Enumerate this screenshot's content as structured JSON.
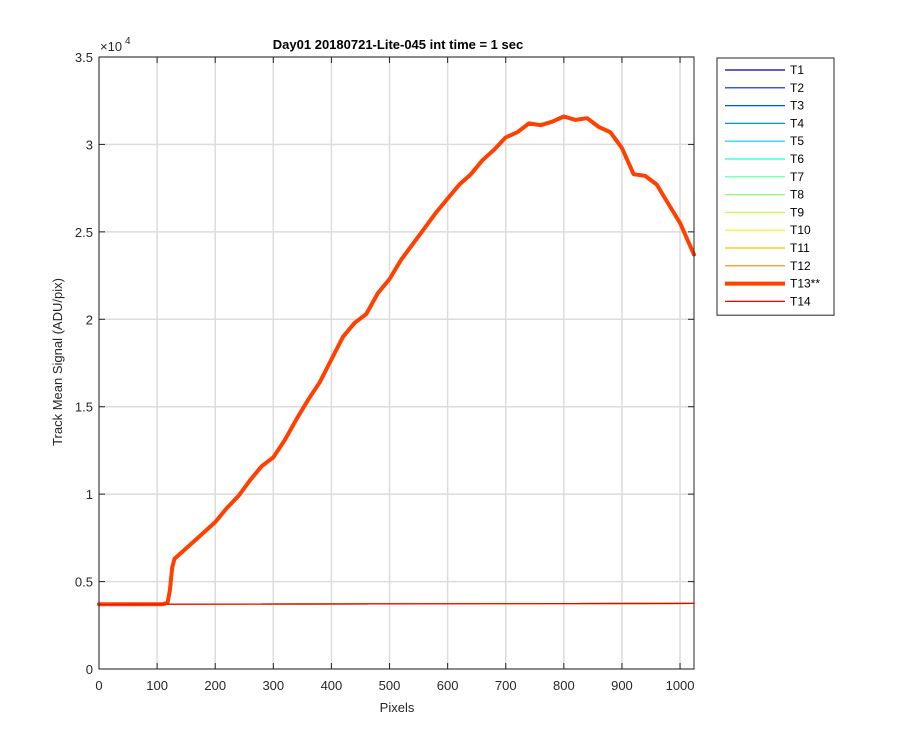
{
  "chart_data": {
    "type": "line",
    "title": "Day01 20180721-Lite-045 int time = 1 sec",
    "xlabel": "Pixels",
    "ylabel": "Track Mean Signal (ADU/pix)",
    "y_multiplier_label": "×10",
    "y_multiplier_exponent": "4",
    "xlim": [
      0,
      1024
    ],
    "ylim": [
      0,
      35000
    ],
    "x_ticks": [
      0,
      100,
      200,
      300,
      400,
      500,
      600,
      700,
      800,
      900,
      1000
    ],
    "x_tick_labels": [
      "0",
      "100",
      "200",
      "300",
      "400",
      "500",
      "600",
      "700",
      "800",
      "900",
      "1000"
    ],
    "y_ticks": [
      0,
      5000,
      10000,
      15000,
      20000,
      25000,
      30000,
      35000
    ],
    "y_tick_labels": [
      "0",
      "0.5",
      "1",
      "1.5",
      "2",
      "2.5",
      "3",
      "3.5"
    ],
    "grid": true,
    "legend_position": "outside-right",
    "series": [
      {
        "name": "T1",
        "color": "#00008f",
        "width": 1.2,
        "x": [
          0,
          1024
        ],
        "y": [
          3700,
          3750
        ]
      },
      {
        "name": "T2",
        "color": "#0020d0",
        "width": 1.2,
        "x": [
          0,
          1024
        ],
        "y": [
          3700,
          3750
        ]
      },
      {
        "name": "T3",
        "color": "#0050ff",
        "width": 1.2,
        "x": [
          0,
          1024
        ],
        "y": [
          3700,
          3750
        ]
      },
      {
        "name": "T4",
        "color": "#008fff",
        "width": 1.2,
        "x": [
          0,
          1024
        ],
        "y": [
          3700,
          3750
        ]
      },
      {
        "name": "T5",
        "color": "#00cfff",
        "width": 1.2,
        "x": [
          0,
          1024
        ],
        "y": [
          3700,
          3750
        ]
      },
      {
        "name": "T6",
        "color": "#20ffdf",
        "width": 1.2,
        "x": [
          0,
          1024
        ],
        "y": [
          3700,
          3750
        ]
      },
      {
        "name": "T7",
        "color": "#60ffa0",
        "width": 1.2,
        "x": [
          0,
          1024
        ],
        "y": [
          3700,
          3750
        ]
      },
      {
        "name": "T8",
        "color": "#90ff70",
        "width": 1.2,
        "x": [
          0,
          1024
        ],
        "y": [
          3700,
          3750
        ]
      },
      {
        "name": "T9",
        "color": "#c0ff40",
        "width": 1.2,
        "x": [
          0,
          1024
        ],
        "y": [
          3700,
          3750
        ]
      },
      {
        "name": "T10",
        "color": "#ffef00",
        "width": 1.2,
        "x": [
          0,
          1024
        ],
        "y": [
          3700,
          3750
        ]
      },
      {
        "name": "T11",
        "color": "#ffbf00",
        "width": 1.2,
        "x": [
          0,
          1024
        ],
        "y": [
          3700,
          3750
        ]
      },
      {
        "name": "T12",
        "color": "#ff8000",
        "width": 1.2,
        "x": [
          0,
          1024
        ],
        "y": [
          3700,
          3750
        ]
      },
      {
        "name": "T13**",
        "color": "#ff4000",
        "width": 4,
        "x": [
          0,
          100,
          110,
          118,
          122,
          126,
          130,
          140,
          160,
          180,
          200,
          220,
          240,
          260,
          280,
          300,
          320,
          340,
          360,
          380,
          400,
          420,
          440,
          460,
          480,
          500,
          520,
          540,
          560,
          580,
          600,
          620,
          640,
          660,
          680,
          700,
          720,
          740,
          760,
          780,
          800,
          820,
          840,
          860,
          880,
          900,
          920,
          940,
          960,
          980,
          1000,
          1024
        ],
        "y": [
          3700,
          3700,
          3700,
          3800,
          4500,
          5800,
          6300,
          6600,
          7200,
          7800,
          8400,
          9200,
          9900,
          10800,
          11600,
          12100,
          13100,
          14300,
          15400,
          16400,
          17700,
          19000,
          19800,
          20300,
          21500,
          22300,
          23400,
          24300,
          25200,
          26100,
          26900,
          27700,
          28300,
          29100,
          29700,
          30400,
          30700,
          31200,
          31100,
          31300,
          31600,
          31400,
          31500,
          31000,
          30700,
          29800,
          28300,
          28200,
          27700,
          26600,
          25500,
          23700
        ]
      },
      {
        "name": "T14",
        "color": "#ef0000",
        "width": 1.2,
        "x": [
          0,
          1024
        ],
        "y": [
          3700,
          3750
        ]
      }
    ]
  }
}
